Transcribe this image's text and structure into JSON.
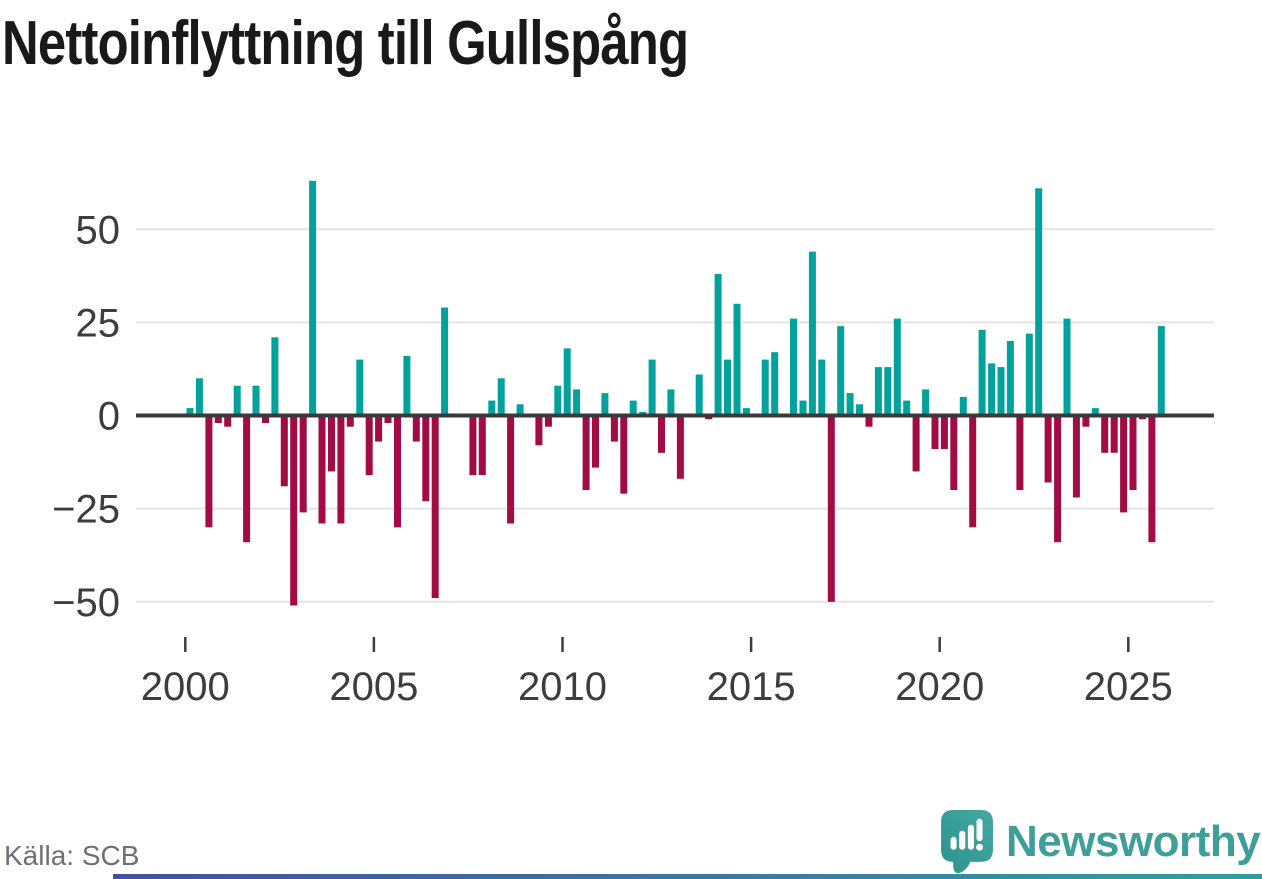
{
  "title": "Nettoinflyttning till Gullspång",
  "source": "Källa: SCB",
  "brand": {
    "name": "Newsworthy",
    "color": "#3f9f98"
  },
  "colors": {
    "positive": "#00a29b",
    "negative": "#a30b45",
    "grid": "#e4e4e4",
    "zero_line": "#3a3a3a",
    "axis_text": "#3d3d3d",
    "title_text": "#191919",
    "source_text": "#6d7078",
    "strip_left": "#4350a2",
    "strip_right": "#2ba2a0"
  },
  "chart_data": {
    "type": "bar",
    "title": "Nettoinflyttning till Gullspång",
    "frequency": "quarterly",
    "x_start": "2000-Q1",
    "x_end": "2025-Q4",
    "x": [
      "2000-Q1",
      "2000-Q2",
      "2000-Q3",
      "2000-Q4",
      "2001-Q1",
      "2001-Q2",
      "2001-Q3",
      "2001-Q4",
      "2002-Q1",
      "2002-Q2",
      "2002-Q3",
      "2002-Q4",
      "2003-Q1",
      "2003-Q2",
      "2003-Q3",
      "2003-Q4",
      "2004-Q1",
      "2004-Q2",
      "2004-Q3",
      "2004-Q4",
      "2005-Q1",
      "2005-Q2",
      "2005-Q3",
      "2005-Q4",
      "2006-Q1",
      "2006-Q2",
      "2006-Q3",
      "2006-Q4",
      "2007-Q1",
      "2007-Q2",
      "2007-Q3",
      "2007-Q4",
      "2008-Q1",
      "2008-Q2",
      "2008-Q3",
      "2008-Q4",
      "2009-Q1",
      "2009-Q2",
      "2009-Q3",
      "2009-Q4",
      "2010-Q1",
      "2010-Q2",
      "2010-Q3",
      "2010-Q4",
      "2011-Q1",
      "2011-Q2",
      "2011-Q3",
      "2011-Q4",
      "2012-Q1",
      "2012-Q2",
      "2012-Q3",
      "2012-Q4",
      "2013-Q1",
      "2013-Q2",
      "2013-Q3",
      "2013-Q4",
      "2014-Q1",
      "2014-Q2",
      "2014-Q3",
      "2014-Q4",
      "2015-Q1",
      "2015-Q2",
      "2015-Q3",
      "2015-Q4",
      "2016-Q1",
      "2016-Q2",
      "2016-Q3",
      "2016-Q4",
      "2017-Q1",
      "2017-Q2",
      "2017-Q3",
      "2017-Q4",
      "2018-Q1",
      "2018-Q2",
      "2018-Q3",
      "2018-Q4",
      "2019-Q1",
      "2019-Q2",
      "2019-Q3",
      "2019-Q4",
      "2020-Q1",
      "2020-Q2",
      "2020-Q3",
      "2020-Q4",
      "2021-Q1",
      "2021-Q2",
      "2021-Q3",
      "2021-Q4",
      "2022-Q1",
      "2022-Q2",
      "2022-Q3",
      "2022-Q4",
      "2023-Q1",
      "2023-Q2",
      "2023-Q3",
      "2023-Q4",
      "2024-Q1",
      "2024-Q2",
      "2024-Q3",
      "2024-Q4",
      "2025-Q1",
      "2025-Q2",
      "2025-Q3",
      "2025-Q4"
    ],
    "values": [
      2,
      10,
      -30,
      -2,
      -3,
      8,
      -34,
      8,
      -2,
      21,
      -19,
      -51,
      -26,
      63,
      -29,
      -15,
      -29,
      -3,
      15,
      -16,
      -7,
      -2,
      -30,
      16,
      -7,
      -23,
      -49,
      29,
      0,
      0,
      -16,
      -16,
      4,
      10,
      -29,
      3,
      0,
      -8,
      -3,
      8,
      18,
      7,
      -20,
      -14,
      6,
      -7,
      -21,
      4,
      1,
      15,
      -10,
      7,
      -17,
      0,
      11,
      -1,
      38,
      15,
      30,
      2,
      0,
      15,
      17,
      0,
      26,
      4,
      44,
      15,
      -50,
      24,
      6,
      3,
      -3,
      13,
      13,
      26,
      4,
      -15,
      7,
      -9,
      -9,
      -20,
      5,
      -30,
      23,
      14,
      13,
      20,
      -20,
      22,
      61,
      -18,
      -34,
      26,
      -22,
      -3,
      2,
      -10,
      -10,
      -26,
      -20,
      -1,
      -34,
      24
    ],
    "positive_color": "#00a29b",
    "negative_color": "#a30b45",
    "yticks": [
      50,
      25,
      0,
      -25,
      -50
    ],
    "ytick_labels": [
      "50",
      "25",
      "0",
      "−25",
      "−50"
    ],
    "xticks": [
      2000,
      2005,
      2010,
      2015,
      2020,
      2025
    ],
    "xtick_labels": [
      "2000",
      "2005",
      "2010",
      "2015",
      "2020",
      "2025"
    ],
    "ylim": [
      -57,
      70
    ],
    "grid": "horizontal",
    "legend": "none"
  }
}
